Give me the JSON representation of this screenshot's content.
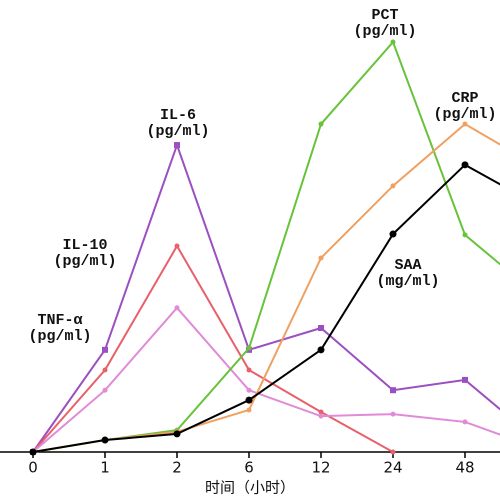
{
  "chart_data": {
    "type": "line",
    "categories": [
      "0",
      "1",
      "2",
      "6",
      "12",
      "24",
      "48",
      null
    ],
    "xlabel": "时间（小时）",
    "ylim": [
      0,
      100
    ],
    "series": [
      {
        "name": "IL-6",
        "color": "#9b4fc0",
        "values": [
          0,
          24.8,
          74.5,
          24.8,
          30.1,
          15.0,
          17.5,
          2.9
        ]
      },
      {
        "name": "IL-10",
        "color": "#e8606a",
        "values": [
          0,
          19.9,
          50,
          19.9,
          9.7,
          0,
          null,
          null
        ]
      },
      {
        "name": "TNF-α",
        "color": "#e08ad8",
        "values": [
          0,
          15,
          35,
          15,
          8.7,
          9.2,
          7.3,
          1
        ]
      },
      {
        "name": "PCT",
        "color": "#66c33a",
        "values": [
          0,
          2.9,
          5.3,
          25.2,
          79.6,
          99.5,
          52.7,
          38.1
        ]
      },
      {
        "name": "CRP",
        "color": "#f0a060",
        "values": [
          0,
          2.9,
          4.9,
          10.2,
          47.1,
          64.6,
          79.6,
          69.4
        ]
      },
      {
        "name": "SAA",
        "color": "#000000",
        "values": [
          0,
          2.9,
          4.4,
          12.6,
          24.8,
          52.9,
          69.7,
          60
        ]
      }
    ],
    "annotations": [
      "(pg/ml)",
      "(pg/ml)",
      "(pg/ml)",
      "(pg/ml)",
      "(pg/ml)",
      "(mg/ml)"
    ]
  }
}
